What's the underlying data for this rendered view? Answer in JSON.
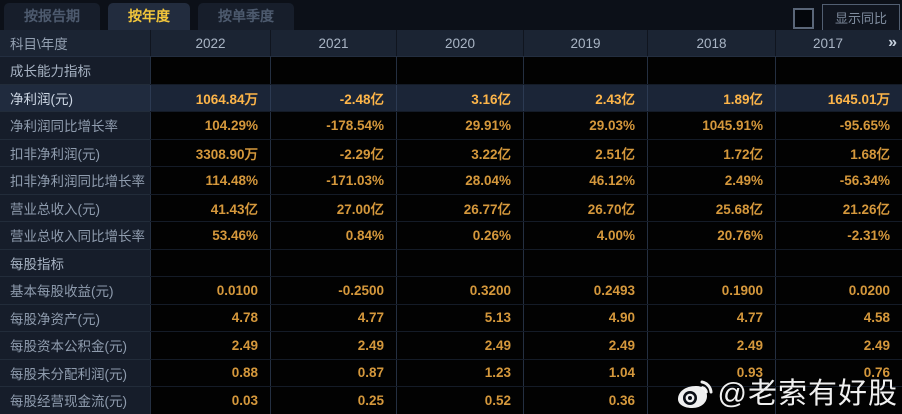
{
  "tabs": [
    {
      "label": "按报告期",
      "active": false
    },
    {
      "label": "按年度",
      "active": true
    },
    {
      "label": "按单季度",
      "active": false
    }
  ],
  "controls": {
    "show_yoy_label": "显示同比",
    "yoy_checkbox_checked": false
  },
  "table": {
    "corner_label": "科目\\年度",
    "years": [
      "2022",
      "2021",
      "2020",
      "2019",
      "2018",
      "2017"
    ],
    "more_icon": "»",
    "rows": [
      {
        "type": "section",
        "label": "成长能力指标",
        "values": [
          "",
          "",
          "",
          "",
          "",
          ""
        ]
      },
      {
        "type": "data",
        "highlight": true,
        "label": "净利润(元)",
        "values": [
          "1064.84万",
          "-2.48亿",
          "3.16亿",
          "2.43亿",
          "1.89亿",
          "1645.01万"
        ]
      },
      {
        "type": "data",
        "highlight": false,
        "label": "净利润同比增长率",
        "values": [
          "104.29%",
          "-178.54%",
          "29.91%",
          "29.03%",
          "1045.91%",
          "-95.65%"
        ]
      },
      {
        "type": "data",
        "highlight": false,
        "label": "扣非净利润(元)",
        "values": [
          "3308.90万",
          "-2.29亿",
          "3.22亿",
          "2.51亿",
          "1.72亿",
          "1.68亿"
        ]
      },
      {
        "type": "data",
        "highlight": false,
        "label": "扣非净利润同比增长率",
        "values": [
          "114.48%",
          "-171.03%",
          "28.04%",
          "46.12%",
          "2.49%",
          "-56.34%"
        ]
      },
      {
        "type": "data",
        "highlight": false,
        "label": "营业总收入(元)",
        "values": [
          "41.43亿",
          "27.00亿",
          "26.77亿",
          "26.70亿",
          "25.68亿",
          "21.26亿"
        ]
      },
      {
        "type": "data",
        "highlight": false,
        "label": "营业总收入同比增长率",
        "values": [
          "53.46%",
          "0.84%",
          "0.26%",
          "4.00%",
          "20.76%",
          "-2.31%"
        ]
      },
      {
        "type": "section",
        "label": "每股指标",
        "values": [
          "",
          "",
          "",
          "",
          "",
          ""
        ]
      },
      {
        "type": "data",
        "highlight": false,
        "label": "基本每股收益(元)",
        "values": [
          "0.0100",
          "-0.2500",
          "0.3200",
          "0.2493",
          "0.1900",
          "0.0200"
        ]
      },
      {
        "type": "data",
        "highlight": false,
        "label": "每股净资产(元)",
        "values": [
          "4.78",
          "4.77",
          "5.13",
          "4.90",
          "4.77",
          "4.58"
        ]
      },
      {
        "type": "data",
        "highlight": false,
        "label": "每股资本公积金(元)",
        "values": [
          "2.49",
          "2.49",
          "2.49",
          "2.49",
          "2.49",
          "2.49"
        ]
      },
      {
        "type": "data",
        "highlight": false,
        "label": "每股未分配利润(元)",
        "values": [
          "0.88",
          "0.87",
          "1.23",
          "1.04",
          "0.93",
          "0.76"
        ]
      },
      {
        "type": "data",
        "highlight": false,
        "label": "每股经营现金流(元)",
        "values": [
          "0.03",
          "0.25",
          "0.52",
          "0.36",
          "",
          ""
        ]
      }
    ]
  },
  "watermark": {
    "handle": "@老索有好股",
    "icon": "weibo-icon"
  },
  "colors": {
    "accent_gold": "#f2c63b",
    "value_orange": "#d5983c",
    "highlight_value": "#fdb549",
    "panel_navy": "#1b2433",
    "cell_black": "#020202"
  }
}
